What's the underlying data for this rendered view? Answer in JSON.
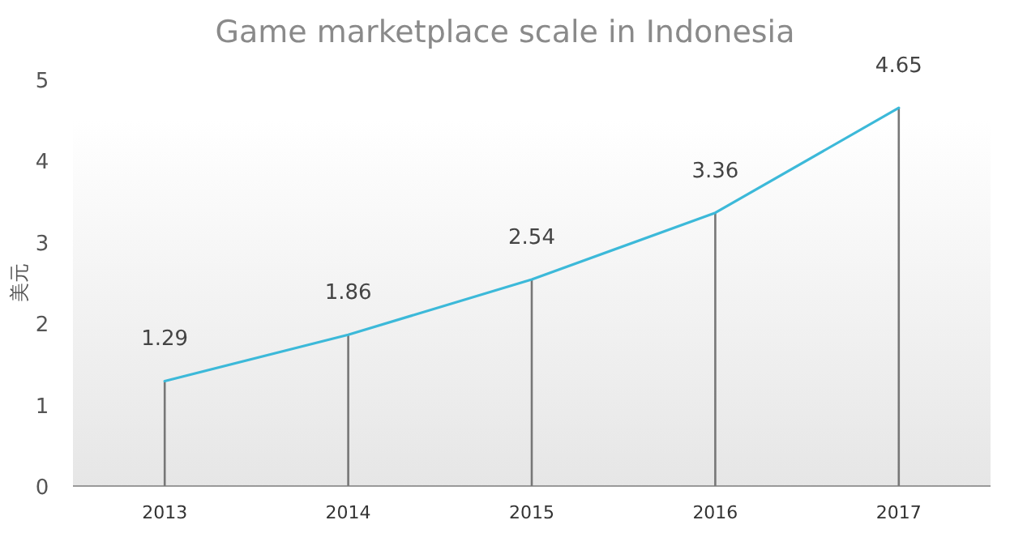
{
  "chart_data": {
    "type": "line",
    "title": "Game marketplace scale in Indonesia",
    "ylabel": "美元",
    "categories": [
      "2013",
      "2014",
      "2015",
      "2016",
      "2017"
    ],
    "series": [
      {
        "type": "bar",
        "color": "#777777",
        "values": [
          1.29,
          1.86,
          2.54,
          3.36,
          4.65
        ]
      },
      {
        "color": "#3cb9d9",
        "values": [
          1.29,
          1.86,
          2.54,
          3.36,
          4.65
        ],
        "value_labels": [
          "1.29",
          "1.86",
          "2.54",
          "3.36",
          "4.65"
        ]
      }
    ],
    "ylim": [
      0,
      5
    ],
    "yticks": [
      0,
      1,
      2,
      3,
      4,
      5
    ],
    "grid": false,
    "marker": "none",
    "line_style": "solid"
  }
}
